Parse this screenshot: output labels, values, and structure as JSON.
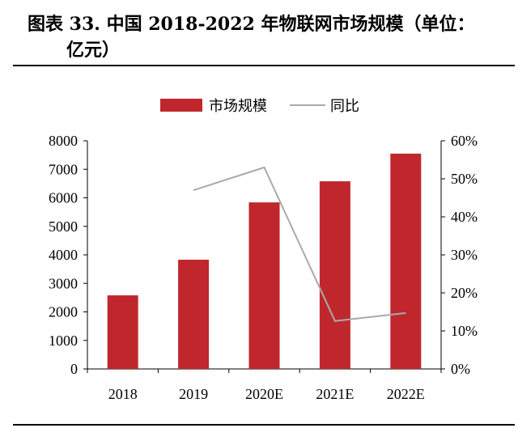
{
  "title_line1": "图表 33. 中国 2018-2022 年物联网市场规模（单位：",
  "title_line2": "亿元）",
  "chart_data": {
    "type": "bar",
    "title": "中国 2018-2022 年物联网市场规模（单位：亿元）",
    "categories": [
      "2018",
      "2019",
      "2020E",
      "2021E",
      "2022E"
    ],
    "series": [
      {
        "name": "市场规模",
        "type": "bar",
        "axis": "left",
        "color": "#C0272D",
        "values": [
          2580,
          3830,
          5840,
          6580,
          7550
        ]
      },
      {
        "name": "同比",
        "type": "line",
        "axis": "right",
        "color": "#AAAAAA",
        "values": [
          null,
          47,
          53,
          12.6,
          14.7
        ]
      }
    ],
    "y_left": {
      "min": 0,
      "max": 8000,
      "ticks": [
        0,
        1000,
        2000,
        3000,
        4000,
        5000,
        6000,
        7000,
        8000
      ]
    },
    "y_right": {
      "min": 0,
      "max": 60,
      "ticks": [
        0,
        10,
        20,
        30,
        40,
        50,
        60
      ],
      "suffix": "%"
    },
    "legend": {
      "placement": "top-center",
      "items": [
        "市场规模",
        "同比"
      ]
    },
    "grid": false
  }
}
